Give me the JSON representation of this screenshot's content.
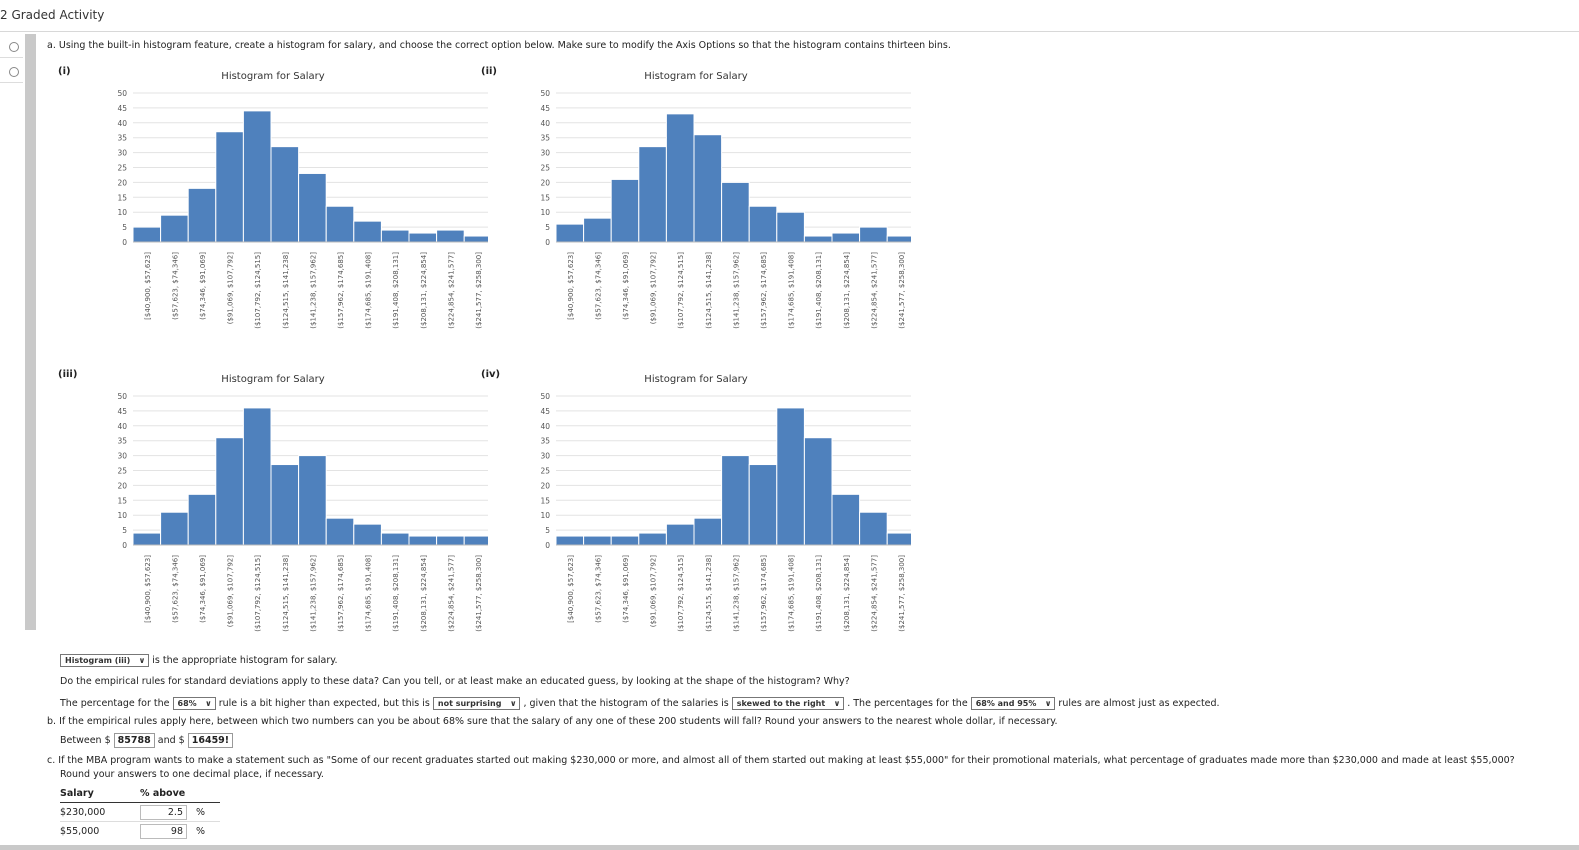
{
  "header": {
    "title": "2 Graded Activity"
  },
  "part_a": {
    "instruction": "a. Using the built-in histogram feature, create a histogram for salary, and choose the correct option below. Make sure to modify the Axis Options so that the histogram contains thirteen bins."
  },
  "chart_data": [
    {
      "panel_label": "(i)",
      "type": "bar",
      "title": "Histogram for Salary",
      "categories": [
        "[$40,900, $57,623]",
        "($57,623, $74,346]",
        "($74,346, $91,069]",
        "($91,069, $107,792]",
        "($107,792, $124,515]",
        "($124,515, $141,238]",
        "($141,238, $157,962]",
        "($157,962, $174,685]",
        "($174,685, $191,408]",
        "($191,408, $208,131]",
        "($208,131, $224,854]",
        "($224,854, $241,577]",
        "($241,577, $258,300]"
      ],
      "values": [
        5,
        9,
        18,
        37,
        44,
        32,
        23,
        12,
        7,
        4,
        3,
        4,
        2
      ],
      "yticks": [
        "0",
        "5",
        "10",
        "15",
        "20",
        "25",
        "30",
        "35",
        "40",
        "45",
        "50"
      ],
      "ylim": [
        0,
        50
      ],
      "color": "#4f81bd"
    },
    {
      "panel_label": "(ii)",
      "type": "bar",
      "title": "Histogram for Salary",
      "categories": [
        "[$40,900, $57,623]",
        "($57,623, $74,346]",
        "($74,346, $91,069]",
        "($91,069, $107,792]",
        "($107,792, $124,515]",
        "($124,515, $141,238]",
        "($141,238, $157,962]",
        "($157,962, $174,685]",
        "($174,685, $191,408]",
        "($191,408, $208,131]",
        "($208,131, $224,854]",
        "($224,854, $241,577]",
        "($241,577, $258,300]"
      ],
      "values": [
        6,
        8,
        21,
        32,
        43,
        36,
        20,
        12,
        10,
        2,
        3,
        5,
        2
      ],
      "yticks": [
        "0",
        "5",
        "10",
        "15",
        "20",
        "25",
        "30",
        "35",
        "40",
        "45",
        "50"
      ],
      "ylim": [
        0,
        50
      ],
      "color": "#4f81bd"
    },
    {
      "panel_label": "(iii)",
      "type": "bar",
      "title": "Histogram for Salary",
      "categories": [
        "[$40,900, $57,623]",
        "($57,623, $74,346]",
        "($74,346, $91,069]",
        "($91,069, $107,792]",
        "($107,792, $124,515]",
        "($124,515, $141,238]",
        "($141,238, $157,962]",
        "($157,962, $174,685]",
        "($174,685, $191,408]",
        "($191,408, $208,131]",
        "($208,131, $224,854]",
        "($224,854, $241,577]",
        "($241,577, $258,300]"
      ],
      "values": [
        4,
        11,
        17,
        36,
        46,
        27,
        30,
        9,
        7,
        4,
        3,
        3,
        3
      ],
      "yticks": [
        "0",
        "5",
        "10",
        "15",
        "20",
        "25",
        "30",
        "35",
        "40",
        "45",
        "50"
      ],
      "ylim": [
        0,
        50
      ],
      "color": "#4f81bd"
    },
    {
      "panel_label": "(iv)",
      "type": "bar",
      "title": "Histogram for Salary",
      "categories": [
        "[$40,900, $57,623]",
        "($57,623, $74,346]",
        "($74,346, $91,069]",
        "($91,069, $107,792]",
        "($107,792, $124,515]",
        "($124,515, $141,238]",
        "($141,238, $157,962]",
        "($157,962, $174,685]",
        "($174,685, $191,408]",
        "($191,408, $208,131]",
        "($208,131, $224,854]",
        "($224,854, $241,577]",
        "($241,577, $258,300]"
      ],
      "values": [
        3,
        3,
        3,
        4,
        7,
        9,
        30,
        27,
        46,
        36,
        17,
        11,
        4
      ],
      "yticks": [
        "0",
        "5",
        "10",
        "15",
        "20",
        "25",
        "30",
        "35",
        "40",
        "45",
        "50"
      ],
      "ylim": [
        0,
        50
      ],
      "color": "#4f81bd"
    }
  ],
  "answer_a": {
    "selected": "Histogram (iii)",
    "suffix": "is the appropriate histogram for salary."
  },
  "empirical": {
    "question": "Do the empirical rules for standard deviations apply to these data? Can you tell, or at least make an educated guess, by looking at the shape of the histogram? Why?",
    "s1": "The percentage for the",
    "select1": "68%",
    "s2": "rule is a bit higher than expected, but this is",
    "select2": "not surprising",
    "s3": ", given that the histogram of the salaries is",
    "select3": "skewed to the right",
    "s4": ". The percentages for the",
    "select4": "68% and 95%",
    "s5": "rules are almost just as expected."
  },
  "part_b": {
    "question": "b. If the empirical rules apply here, between which two numbers can you be about 68% sure that the salary of any one of these 200 students will fall? Round your answers to the nearest whole dollar, if necessary.",
    "between": "Between $",
    "value1": "85788",
    "and": "and $",
    "value2": "16459!"
  },
  "part_c": {
    "question": "c. If the MBA program wants to make a statement such as \"Some of our recent graduates started out making $230,000 or more, and almost all of them started out making at least $55,000\" for their promotional materials, what percentage of graduates made more than $230,000 and made at least $55,000?",
    "round_note": "Round your answers to one decimal place, if necessary.",
    "col_salary": "Salary",
    "col_pct": "% above",
    "rows": [
      {
        "salary": "$230,000",
        "pct": "2.5",
        "unit": "%"
      },
      {
        "salary": "$55,000",
        "pct": "98",
        "unit": "%"
      }
    ]
  }
}
